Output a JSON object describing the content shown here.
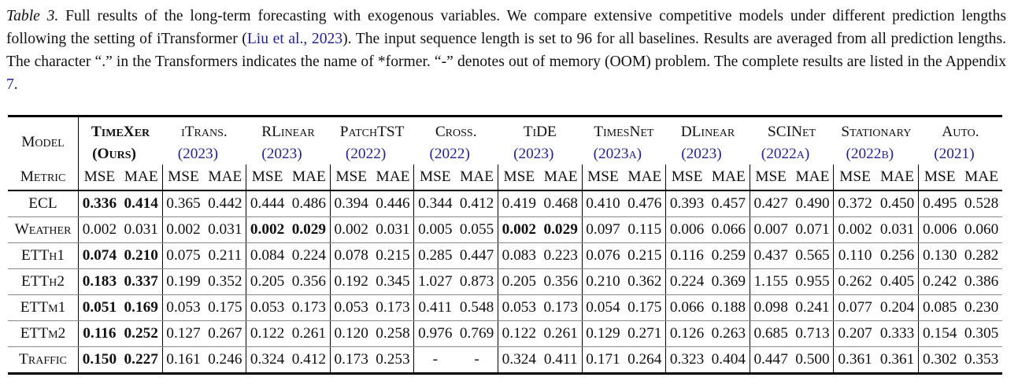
{
  "caption": {
    "label": "Table 3.",
    "text1": " Full results of the long-term forecasting with exogenous variables. We compare extensive competitive models under different prediction lengths following the setting of iTransformer (",
    "cite": "Liu et al., 2023",
    "text2": "). The input sequence length is set to 96 for all baselines. Results are averaged from all prediction lengths. The character “.” in the Transformers indicates the name of *former. “-” denotes out of memory (OOM) problem. The complete results are listed in the Appendix ",
    "appendix": "7",
    "text3": "."
  },
  "table": {
    "model_label": "Model",
    "metric_label": "Metric",
    "models": [
      {
        "name": "TimeXer",
        "year": "(Ours)",
        "ours": true
      },
      {
        "name": "iTrans.",
        "year": "(2023)"
      },
      {
        "name": "RLinear",
        "year": "(2023)"
      },
      {
        "name": "PatchTST",
        "year": "(2022)"
      },
      {
        "name": "Cross.",
        "year": "(2022)"
      },
      {
        "name": "TiDE",
        "year": "(2023)"
      },
      {
        "name": "TimesNet",
        "year": "(2023a)"
      },
      {
        "name": "DLinear",
        "year": "(2023)"
      },
      {
        "name": "SCINet",
        "year": "(2022a)"
      },
      {
        "name": "Stationary",
        "year": "(2022b)"
      },
      {
        "name": "Auto.",
        "year": "(2021)"
      }
    ],
    "metrics": [
      "MSE",
      "MAE"
    ],
    "rows": [
      {
        "dataset": "ECL",
        "bold": [
          0
        ],
        "values": [
          [
            "0.336",
            "0.414"
          ],
          [
            "0.365",
            "0.442"
          ],
          [
            "0.444",
            "0.486"
          ],
          [
            "0.394",
            "0.446"
          ],
          [
            "0.344",
            "0.412"
          ],
          [
            "0.419",
            "0.468"
          ],
          [
            "0.410",
            "0.476"
          ],
          [
            "0.393",
            "0.457"
          ],
          [
            "0.427",
            "0.490"
          ],
          [
            "0.372",
            "0.450"
          ],
          [
            "0.495",
            "0.528"
          ]
        ]
      },
      {
        "dataset": "Weather",
        "bold": [
          2,
          5
        ],
        "values": [
          [
            "0.002",
            "0.031"
          ],
          [
            "0.002",
            "0.031"
          ],
          [
            "0.002",
            "0.029"
          ],
          [
            "0.002",
            "0.031"
          ],
          [
            "0.005",
            "0.055"
          ],
          [
            "0.002",
            "0.029"
          ],
          [
            "0.097",
            "0.115"
          ],
          [
            "0.006",
            "0.066"
          ],
          [
            "0.007",
            "0.071"
          ],
          [
            "0.002",
            "0.031"
          ],
          [
            "0.006",
            "0.060"
          ]
        ]
      },
      {
        "dataset": "ETTh1",
        "bold": [
          0
        ],
        "values": [
          [
            "0.074",
            "0.210"
          ],
          [
            "0.075",
            "0.211"
          ],
          [
            "0.084",
            "0.224"
          ],
          [
            "0.078",
            "0.215"
          ],
          [
            "0.285",
            "0.447"
          ],
          [
            "0.083",
            "0.223"
          ],
          [
            "0.076",
            "0.215"
          ],
          [
            "0.116",
            "0.259"
          ],
          [
            "0.437",
            "0.565"
          ],
          [
            "0.110",
            "0.256"
          ],
          [
            "0.130",
            "0.282"
          ]
        ]
      },
      {
        "dataset": "ETTh2",
        "bold": [
          0
        ],
        "values": [
          [
            "0.183",
            "0.337"
          ],
          [
            "0.199",
            "0.352"
          ],
          [
            "0.205",
            "0.356"
          ],
          [
            "0.192",
            "0.345"
          ],
          [
            "1.027",
            "0.873"
          ],
          [
            "0.205",
            "0.356"
          ],
          [
            "0.210",
            "0.362"
          ],
          [
            "0.224",
            "0.369"
          ],
          [
            "1.155",
            "0.955"
          ],
          [
            "0.262",
            "0.405"
          ],
          [
            "0.242",
            "0.386"
          ]
        ]
      },
      {
        "dataset": "ETTm1",
        "bold": [
          0
        ],
        "values": [
          [
            "0.051",
            "0.169"
          ],
          [
            "0.053",
            "0.175"
          ],
          [
            "0.053",
            "0.173"
          ],
          [
            "0.053",
            "0.173"
          ],
          [
            "0.411",
            "0.548"
          ],
          [
            "0.053",
            "0.173"
          ],
          [
            "0.054",
            "0.175"
          ],
          [
            "0.066",
            "0.188"
          ],
          [
            "0.098",
            "0.241"
          ],
          [
            "0.077",
            "0.204"
          ],
          [
            "0.085",
            "0.230"
          ]
        ]
      },
      {
        "dataset": "ETTm2",
        "bold": [
          0
        ],
        "values": [
          [
            "0.116",
            "0.252"
          ],
          [
            "0.127",
            "0.267"
          ],
          [
            "0.122",
            "0.261"
          ],
          [
            "0.120",
            "0.258"
          ],
          [
            "0.976",
            "0.769"
          ],
          [
            "0.122",
            "0.261"
          ],
          [
            "0.129",
            "0.271"
          ],
          [
            "0.126",
            "0.263"
          ],
          [
            "0.685",
            "0.713"
          ],
          [
            "0.207",
            "0.333"
          ],
          [
            "0.154",
            "0.305"
          ]
        ]
      },
      {
        "dataset": "Traffic",
        "bold": [
          0
        ],
        "values": [
          [
            "0.150",
            "0.227"
          ],
          [
            "0.161",
            "0.246"
          ],
          [
            "0.324",
            "0.412"
          ],
          [
            "0.173",
            "0.253"
          ],
          [
            "-",
            "-"
          ],
          [
            "0.324",
            "0.411"
          ],
          [
            "0.171",
            "0.264"
          ],
          [
            "0.323",
            "0.404"
          ],
          [
            "0.447",
            "0.500"
          ],
          [
            "0.361",
            "0.361"
          ],
          [
            "0.302",
            "0.353"
          ]
        ]
      }
    ]
  },
  "colors": {
    "link": "#1f1f9a"
  }
}
